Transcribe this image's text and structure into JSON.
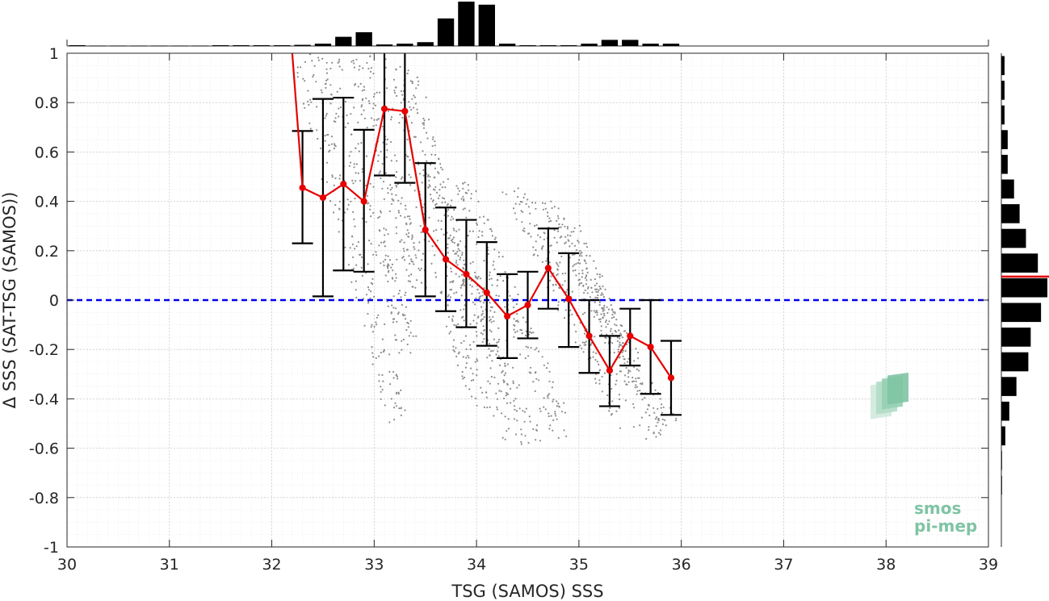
{
  "chart_data": {
    "type": "scatter",
    "title": "",
    "xlabel": "TSG (SAMOS) SSS",
    "ylabel": "Δ SSS (SAT-TSG (SAMOS))",
    "xlim": [
      30,
      39
    ],
    "ylim": [
      -1,
      1
    ],
    "xticks": [
      30,
      31,
      32,
      33,
      34,
      35,
      36,
      37,
      38,
      39
    ],
    "yticks": [
      -1,
      -0.8,
      -0.6,
      -0.4,
      -0.2,
      0,
      0.2,
      0.4,
      0.6,
      0.8,
      1
    ],
    "xtick_labels": [
      "30",
      "31",
      "32",
      "33",
      "34",
      "35",
      "36",
      "37",
      "38",
      "39"
    ],
    "ytick_labels": [
      "-1",
      "-0.8",
      "-0.6",
      "-0.4",
      "-0.2",
      "0",
      "0.2",
      "0.4",
      "0.6",
      "0.8",
      "1"
    ],
    "grid": true,
    "zero_line": {
      "y": 0,
      "color": "#0000ee",
      "style": "dashed"
    },
    "scatter_color": "#8c8c8c",
    "scatter_bands": [
      {
        "x0": 32.3,
        "y0": 0.98,
        "x1": 33.25,
        "y1": -0.5
      },
      {
        "x0": 32.55,
        "y0": 0.98,
        "x1": 33.35,
        "y1": -0.2
      },
      {
        "x0": 32.85,
        "y0": 0.98,
        "x1": 33.45,
        "y1": 0.05
      },
      {
        "x0": 33.1,
        "y0": 0.98,
        "x1": 34.05,
        "y1": -0.45
      },
      {
        "x0": 33.3,
        "y0": 0.95,
        "x1": 34.35,
        "y1": -0.55
      },
      {
        "x0": 33.55,
        "y0": 0.55,
        "x1": 34.55,
        "y1": -0.6
      },
      {
        "x0": 33.85,
        "y0": 0.5,
        "x1": 34.85,
        "y1": -0.55
      },
      {
        "x0": 34.35,
        "y0": 0.45,
        "x1": 35.45,
        "y1": -0.5
      },
      {
        "x0": 34.65,
        "y0": 0.4,
        "x1": 35.85,
        "y1": -0.5
      },
      {
        "x0": 34.9,
        "y0": 0.3,
        "x1": 35.75,
        "y1": -0.55
      }
    ],
    "mean_line": {
      "color": "#e60000",
      "x": [
        32.2,
        32.3,
        32.5,
        32.7,
        32.9,
        33.1,
        33.3,
        33.5,
        33.7,
        33.9,
        34.1,
        34.3,
        34.5,
        34.7,
        34.9,
        35.1,
        35.3,
        35.5,
        35.7,
        35.9
      ],
      "y": [
        1.0,
        0.455,
        0.415,
        0.47,
        0.4,
        0.775,
        0.765,
        0.285,
        0.165,
        0.105,
        0.03,
        -0.065,
        -0.02,
        0.13,
        0.005,
        -0.145,
        -0.285,
        -0.145,
        -0.19,
        -0.315
      ]
    },
    "error_bars": {
      "x": [
        32.3,
        32.5,
        32.7,
        32.9,
        33.1,
        33.3,
        33.5,
        33.7,
        33.9,
        34.1,
        34.3,
        34.5,
        34.7,
        34.9,
        35.1,
        35.3,
        35.5,
        35.7,
        35.9
      ],
      "upper": [
        0.685,
        0.815,
        0.82,
        0.69,
        1.05,
        1.05,
        0.555,
        0.375,
        0.325,
        0.235,
        0.105,
        0.115,
        0.29,
        0.19,
        0.0,
        -0.145,
        -0.035,
        0.0,
        -0.165
      ],
      "lower": [
        0.23,
        0.015,
        0.12,
        0.115,
        0.505,
        0.475,
        0.015,
        -0.045,
        -0.11,
        -0.185,
        -0.235,
        -0.155,
        -0.035,
        -0.19,
        -0.295,
        -0.43,
        -0.265,
        -0.38,
        -0.465
      ]
    },
    "top_histogram": {
      "bin_width": 0.2,
      "x": [
        30.1,
        30.3,
        30.5,
        30.7,
        30.9,
        31.1,
        31.3,
        31.5,
        31.7,
        31.9,
        32.1,
        32.3,
        32.5,
        32.7,
        32.9,
        33.1,
        33.3,
        33.5,
        33.7,
        33.9,
        34.1,
        34.3,
        34.5,
        34.7,
        34.9,
        35.1,
        35.3,
        35.5,
        35.7,
        35.9
      ],
      "counts": [
        1,
        0.5,
        0.5,
        0.5,
        0.5,
        0.5,
        0.5,
        1,
        1,
        1,
        1,
        1.5,
        3,
        12,
        18,
        2,
        3,
        5,
        36,
        58,
        54,
        3,
        1,
        1,
        1,
        3,
        8,
        8,
        3,
        3
      ]
    },
    "right_histogram": {
      "bin_width": 0.1,
      "y": [
        0.95,
        0.85,
        0.75,
        0.65,
        0.55,
        0.45,
        0.35,
        0.25,
        0.15,
        0.05,
        -0.05,
        -0.15,
        -0.25,
        -0.35,
        -0.45,
        -0.55,
        -0.65,
        -0.75
      ],
      "counts": [
        4,
        4,
        4,
        8,
        8,
        16,
        23,
        31,
        46,
        58,
        50,
        37,
        34,
        19,
        10,
        5,
        0.5,
        0.5
      ],
      "mean_line_y": 0.095
    }
  },
  "logo": {
    "line1": "smos",
    "line2": "pi-mep"
  }
}
